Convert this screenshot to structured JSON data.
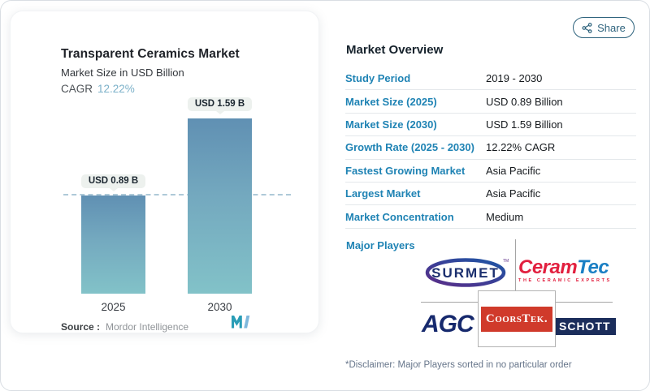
{
  "share": {
    "label": "Share"
  },
  "chart": {
    "title": "Transparent Ceramics Market",
    "subtitle": "Market Size in USD Billion",
    "cagr_label": "CAGR",
    "cagr_value": "12.22%",
    "source_label": "Source :",
    "source_value": "Mordor Intelligence"
  },
  "chart_data": {
    "type": "bar",
    "categories": [
      "2025",
      "2030"
    ],
    "values": [
      0.89,
      1.59
    ],
    "bar_labels": [
      "USD 0.89 B",
      "USD 1.59 B"
    ],
    "title": "Transparent Ceramics Market",
    "subtitle": "Market Size in USD Billion",
    "ylabel": "USD Billion",
    "ylim": [
      0,
      1.7
    ],
    "reference_line": 0.89,
    "grid": false,
    "colors": {
      "bar_top": "#6090b3",
      "bar_bottom": "#82c2c8",
      "badge_bg": "#edf1ee",
      "reference_dash": "#aec9d8"
    }
  },
  "overview": {
    "heading": "Market Overview",
    "rows": [
      {
        "label": "Study Period",
        "value": "2019 - 2030"
      },
      {
        "label": "Market Size (2025)",
        "value": "USD 0.89 Billion"
      },
      {
        "label": "Market Size (2030)",
        "value": "USD 1.59 Billion"
      },
      {
        "label": "Growth Rate (2025 - 2030)",
        "value": "12.22% CAGR"
      },
      {
        "label": "Fastest Growing Market",
        "value": "Asia Pacific"
      },
      {
        "label": "Largest Market",
        "value": "Asia Pacific"
      },
      {
        "label": "Market Concentration",
        "value": "Medium"
      }
    ],
    "major_players_label": "Major Players",
    "disclaimer": "*Disclaimer: Major Players sorted in no particular order"
  },
  "logos": {
    "surmet": {
      "text": "SURMET",
      "tm": "TM"
    },
    "ceramtec": {
      "part1": "Ceram",
      "part2": "Tec",
      "tagline": "THE CERAMIC EXPERTS"
    },
    "agc": {
      "text": "AGC"
    },
    "coorstek": {
      "text": "CoorsTek."
    },
    "schott": {
      "text": "SCHOTT"
    }
  }
}
